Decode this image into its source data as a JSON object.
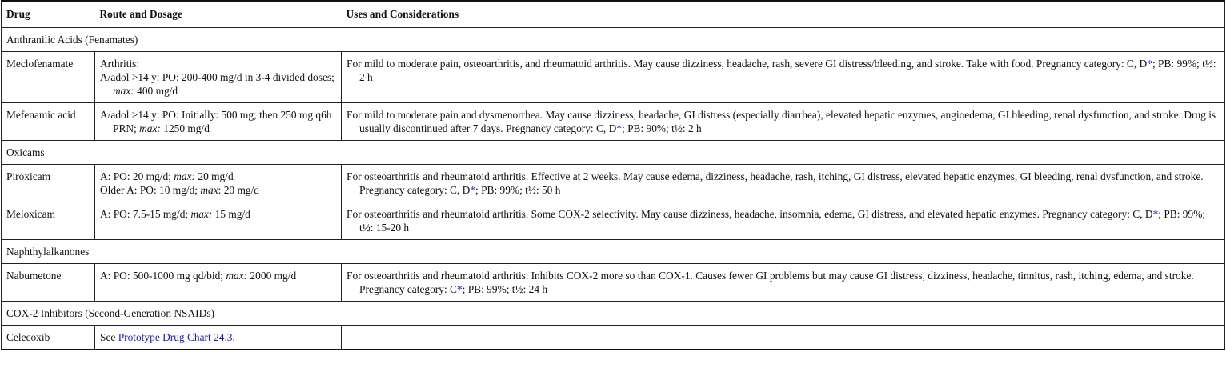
{
  "headers": {
    "drug": "Drug",
    "route": "Route and Dosage",
    "uses": "Uses and Considerations"
  },
  "link_color": "#1a1acc",
  "rows": [
    {
      "group": "Anthranilic Acids (Fenamates)"
    },
    {
      "drug": "Meclofenamate",
      "dose": [
        [
          {
            "t": "Arthritis:"
          }
        ],
        [
          {
            "t": "A/adol >14 y: PO: 200-400 mg/d in 3-4 divided doses; "
          },
          {
            "t": "max:",
            "i": true
          },
          {
            "t": " 400 mg/d"
          }
        ]
      ],
      "uses": [
        {
          "t": "For mild to moderate pain, osteoarthritis, and rheumatoid arthritis. May cause dizziness, headache, rash, severe GI distress/bleeding, and stroke. Take with food. Pregnancy category: C, D"
        },
        {
          "t": "*",
          "s": true
        },
        {
          "t": "; PB: 99%; t½: 2 h"
        }
      ]
    },
    {
      "drug": "Mefenamic acid",
      "dose": [
        [
          {
            "t": "A/adol >14 y: PO: Initially: 500 mg; then 250 mg q6h PRN; "
          },
          {
            "t": "max:",
            "i": true
          },
          {
            "t": " 1250 mg/d"
          }
        ]
      ],
      "uses": [
        {
          "t": "For mild to moderate pain and dysmenorrhea. May cause dizziness, headache, GI distress (especially diarrhea), elevated hepatic enzymes, angioedema, GI bleeding, renal dysfunction, and stroke. Drug is usually discontinued after 7 days. Pregnancy category: C, D"
        },
        {
          "t": "*",
          "s": true
        },
        {
          "t": "; PB: 90%; t½: 2 h"
        }
      ]
    },
    {
      "group": "Oxicams"
    },
    {
      "drug": "Piroxicam",
      "dose": [
        [
          {
            "t": "A: PO: 20 mg/d; "
          },
          {
            "t": "max:",
            "i": true
          },
          {
            "t": " 20 mg/d"
          }
        ],
        [
          {
            "t": "Older A: PO: 10 mg/d; "
          },
          {
            "t": "max",
            "i": true
          },
          {
            "t": ": 20 mg/d"
          }
        ]
      ],
      "uses": [
        {
          "t": "For osteoarthritis and rheumatoid arthritis. Effective at 2 weeks. May cause edema, dizziness, headache, rash, itching, GI distress, elevated hepatic enzymes, GI bleeding, renal dysfunction, and stroke. Pregnancy category: C, D"
        },
        {
          "t": "*",
          "s": true
        },
        {
          "t": "; PB: 99%; t½: 50 h"
        }
      ]
    },
    {
      "drug": "Meloxicam",
      "dose": [
        [
          {
            "t": "A: PO: 7.5-15 mg/d; "
          },
          {
            "t": "max:",
            "i": true
          },
          {
            "t": " 15 mg/d"
          }
        ]
      ],
      "uses": [
        {
          "t": "For osteoarthritis and rheumatoid arthritis. Some COX-2 selectivity. May cause dizziness, headache, insomnia, edema, GI distress, and elevated hepatic enzymes. Pregnancy category: C, D"
        },
        {
          "t": "*",
          "s": true
        },
        {
          "t": "; PB: 99%; t½: 15-20 h"
        }
      ]
    },
    {
      "group": "Naphthylalkanones"
    },
    {
      "drug": "Nabumetone",
      "dose": [
        [
          {
            "t": "A: PO: 500-1000 mg qd/bid; "
          },
          {
            "t": "max:",
            "i": true
          },
          {
            "t": " 2000 mg/d"
          }
        ]
      ],
      "uses": [
        {
          "t": "For osteoarthritis and rheumatoid arthritis. Inhibits COX-2 more so than COX-1. Causes fewer GI problems but may cause GI distress, dizziness, headache, tinnitus, rash, itching, edema, and stroke. Pregnancy category: C"
        },
        {
          "t": "*",
          "s": true
        },
        {
          "t": "; PB: 99%; t½: 24 h"
        }
      ]
    },
    {
      "group": "COX-2 Inhibitors (Second-Generation NSAIDs)"
    },
    {
      "drug": "Celecoxib",
      "dose": [
        [
          {
            "t": "See "
          },
          {
            "t": "Prototype Drug Chart 24.3",
            "link": true
          },
          {
            "t": "."
          }
        ]
      ],
      "uses": []
    }
  ]
}
